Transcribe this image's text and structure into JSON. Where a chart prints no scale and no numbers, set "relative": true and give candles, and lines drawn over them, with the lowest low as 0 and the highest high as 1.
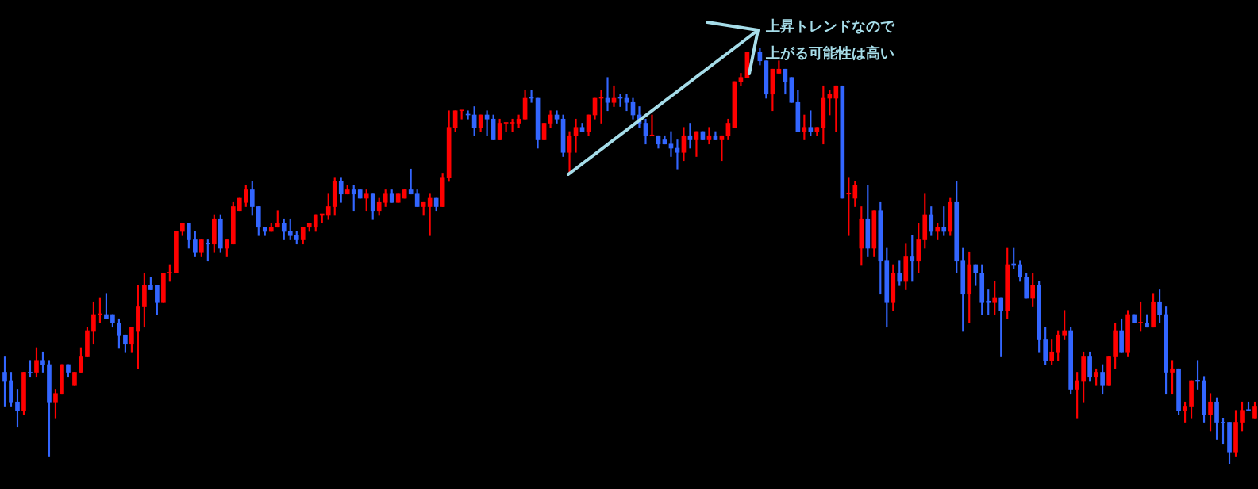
{
  "chart_data": {
    "type": "candlestick",
    "relative": true,
    "annotations": [
      "上昇トレンドなので",
      "上がる可能性は高い"
    ],
    "categories": [
      null,
      null,
      null,
      null,
      null,
      null,
      null,
      null,
      null,
      null,
      null,
      null,
      null,
      null,
      null,
      null,
      null,
      null,
      null,
      null,
      null,
      null,
      null,
      null,
      null,
      null,
      null,
      null,
      null,
      null,
      null,
      null,
      null,
      null,
      null,
      null,
      null,
      null,
      null,
      null,
      null,
      null,
      null,
      null,
      null,
      null,
      null,
      null,
      null,
      null,
      null,
      null,
      null,
      null,
      null,
      null,
      null,
      null,
      null,
      null,
      null,
      null,
      null,
      null,
      null,
      null,
      null,
      null,
      null,
      null,
      null,
      null,
      null,
      null,
      null,
      null,
      null,
      null,
      null,
      null,
      null,
      null,
      null,
      null,
      null,
      null,
      null,
      null,
      null,
      null,
      null,
      null,
      null,
      null,
      null,
      null,
      null,
      null,
      null,
      null,
      null,
      null,
      null,
      null,
      null,
      null,
      null,
      null,
      null,
      null,
      null,
      null,
      null,
      null,
      null,
      null,
      null,
      null,
      null,
      null,
      null,
      null,
      null,
      null,
      null,
      null,
      null,
      null,
      null,
      null,
      null,
      null,
      null,
      null,
      null,
      null,
      null,
      null,
      null,
      null,
      null,
      null,
      null,
      null,
      null,
      null,
      null,
      null,
      null,
      null,
      null,
      null,
      null,
      null,
      null,
      null,
      null,
      null,
      null,
      null,
      null,
      null,
      null,
      null,
      null,
      null,
      null,
      null,
      null,
      null,
      null,
      null,
      null,
      null,
      null,
      null,
      null,
      null,
      null,
      null,
      null,
      null,
      null,
      null,
      null,
      null,
      null,
      null,
      null,
      null,
      null,
      null,
      null,
      null,
      null,
      null,
      null,
      null
    ],
    "ohlc": [
      [
        0.22,
        0.26,
        0.14,
        0.2
      ],
      [
        0.2,
        0.22,
        0.14,
        0.15
      ],
      [
        0.15,
        0.18,
        0.09,
        0.13
      ],
      [
        0.13,
        0.22,
        0.12,
        0.22
      ],
      [
        0.22,
        0.25,
        0.21,
        0.22
      ],
      [
        0.22,
        0.28,
        0.21,
        0.25
      ],
      [
        0.25,
        0.27,
        0.22,
        0.24
      ],
      [
        0.24,
        0.25,
        0.02,
        0.15
      ],
      [
        0.15,
        0.18,
        0.11,
        0.17
      ],
      [
        0.17,
        0.24,
        0.17,
        0.24
      ],
      [
        0.24,
        0.24,
        0.21,
        0.22
      ],
      [
        0.19,
        0.22,
        0.19,
        0.22
      ],
      [
        0.22,
        0.28,
        0.22,
        0.26
      ],
      [
        0.26,
        0.33,
        0.26,
        0.32
      ],
      [
        0.32,
        0.39,
        0.29,
        0.36
      ],
      [
        0.36,
        0.4,
        0.34,
        0.36
      ],
      [
        0.36,
        0.41,
        0.35,
        0.35
      ],
      [
        0.36,
        0.36,
        0.33,
        0.34
      ],
      [
        0.34,
        0.35,
        0.28,
        0.31
      ],
      [
        0.31,
        0.31,
        0.27,
        0.29
      ],
      [
        0.29,
        0.33,
        0.27,
        0.33
      ],
      [
        0.32,
        0.43,
        0.23,
        0.38
      ],
      [
        0.38,
        0.46,
        0.33,
        0.43
      ],
      [
        0.43,
        0.45,
        0.42,
        0.42
      ],
      [
        0.43,
        0.43,
        0.36,
        0.39
      ],
      [
        0.39,
        0.46,
        0.39,
        0.46
      ],
      [
        0.46,
        0.48,
        0.44,
        0.46
      ],
      [
        0.46,
        0.56,
        0.46,
        0.56
      ],
      [
        0.56,
        0.58,
        0.55,
        0.58
      ],
      [
        0.58,
        0.58,
        0.52,
        0.54
      ],
      [
        0.54,
        0.56,
        0.5,
        0.51
      ],
      [
        0.51,
        0.54,
        0.5,
        0.54
      ],
      [
        0.53,
        0.54,
        0.49,
        0.53
      ],
      [
        0.53,
        0.6,
        0.51,
        0.59
      ],
      [
        0.59,
        0.6,
        0.51,
        0.52
      ],
      [
        0.52,
        0.54,
        0.5,
        0.54
      ],
      [
        0.53,
        0.63,
        0.53,
        0.62
      ],
      [
        0.61,
        0.64,
        0.61,
        0.64
      ],
      [
        0.63,
        0.67,
        0.62,
        0.66
      ],
      [
        0.66,
        0.68,
        0.6,
        0.62
      ],
      [
        0.62,
        0.62,
        0.55,
        0.57
      ],
      [
        0.57,
        0.57,
        0.55,
        0.56
      ],
      [
        0.56,
        0.58,
        0.56,
        0.57
      ],
      [
        0.57,
        0.61,
        0.57,
        0.58
      ],
      [
        0.58,
        0.59,
        0.54,
        0.56
      ],
      [
        0.56,
        0.59,
        0.54,
        0.55
      ],
      [
        0.55,
        0.56,
        0.53,
        0.54
      ],
      [
        0.54,
        0.57,
        0.53,
        0.57
      ],
      [
        0.57,
        0.58,
        0.56,
        0.58
      ],
      [
        0.57,
        0.6,
        0.56,
        0.6
      ],
      [
        0.6,
        0.6,
        0.58,
        0.6
      ],
      [
        0.6,
        0.65,
        0.59,
        0.62
      ],
      [
        0.62,
        0.69,
        0.6,
        0.68
      ],
      [
        0.68,
        0.69,
        0.63,
        0.65
      ],
      [
        0.65,
        0.67,
        0.65,
        0.66
      ],
      [
        0.66,
        0.67,
        0.61,
        0.65
      ],
      [
        0.66,
        0.66,
        0.64,
        0.64
      ],
      [
        0.64,
        0.66,
        0.61,
        0.65
      ],
      [
        0.65,
        0.65,
        0.59,
        0.61
      ],
      [
        0.61,
        0.64,
        0.6,
        0.63
      ],
      [
        0.63,
        0.66,
        0.62,
        0.65
      ],
      [
        0.65,
        0.66,
        0.63,
        0.63
      ],
      [
        0.63,
        0.65,
        0.63,
        0.65
      ],
      [
        0.64,
        0.66,
        0.64,
        0.66
      ],
      [
        0.66,
        0.71,
        0.65,
        0.65
      ],
      [
        0.65,
        0.66,
        0.62,
        0.62
      ],
      [
        0.62,
        0.63,
        0.6,
        0.63
      ],
      [
        0.62,
        0.65,
        0.55,
        0.64
      ],
      [
        0.64,
        0.64,
        0.61,
        0.62
      ],
      [
        0.62,
        0.7,
        0.62,
        0.69
      ],
      [
        0.69,
        0.85,
        0.68,
        0.81
      ],
      [
        0.81,
        0.85,
        0.8,
        0.85
      ],
      [
        0.85,
        0.85,
        0.83,
        0.85
      ],
      [
        0.84,
        0.85,
        0.83,
        0.84
      ],
      [
        0.84,
        0.86,
        0.79,
        0.81
      ],
      [
        0.81,
        0.84,
        0.8,
        0.84
      ],
      [
        0.84,
        0.85,
        0.79,
        0.83
      ],
      [
        0.83,
        0.84,
        0.78,
        0.78
      ],
      [
        0.78,
        0.83,
        0.78,
        0.82
      ],
      [
        0.82,
        0.82,
        0.8,
        0.82
      ],
      [
        0.82,
        0.83,
        0.8,
        0.82
      ],
      [
        0.82,
        0.84,
        0.81,
        0.83
      ],
      [
        0.83,
        0.9,
        0.83,
        0.88
      ],
      [
        0.88,
        0.9,
        0.87,
        0.88
      ],
      [
        0.88,
        0.88,
        0.76,
        0.78
      ],
      [
        0.78,
        0.82,
        0.78,
        0.82
      ],
      [
        0.82,
        0.85,
        0.81,
        0.84
      ],
      [
        0.84,
        0.85,
        0.82,
        0.83
      ],
      [
        0.83,
        0.84,
        0.74,
        0.75
      ],
      [
        0.75,
        0.8,
        0.7,
        0.79
      ],
      [
        0.79,
        0.83,
        0.75,
        0.81
      ],
      [
        0.81,
        0.82,
        0.8,
        0.8
      ],
      [
        0.8,
        0.84,
        0.79,
        0.84
      ],
      [
        0.84,
        0.88,
        0.83,
        0.88
      ],
      [
        0.88,
        0.9,
        0.82,
        0.88
      ],
      [
        0.88,
        0.93,
        0.85,
        0.87
      ],
      [
        0.87,
        0.91,
        0.86,
        0.88
      ],
      [
        0.88,
        0.89,
        0.86,
        0.88
      ],
      [
        0.88,
        0.89,
        0.85,
        0.87
      ],
      [
        0.87,
        0.88,
        0.83,
        0.84
      ],
      [
        0.84,
        0.86,
        0.81,
        0.82
      ],
      [
        0.82,
        0.83,
        0.77,
        0.79
      ],
      [
        0.79,
        0.84,
        0.79,
        0.79
      ],
      [
        0.79,
        0.79,
        0.76,
        0.77
      ],
      [
        0.78,
        0.79,
        0.77,
        0.77
      ],
      [
        0.77,
        0.8,
        0.74,
        0.76
      ],
      [
        0.76,
        0.78,
        0.71,
        0.75
      ],
      [
        0.75,
        0.81,
        0.73,
        0.79
      ],
      [
        0.79,
        0.82,
        0.76,
        0.78
      ],
      [
        0.78,
        0.8,
        0.74,
        0.8
      ],
      [
        0.8,
        0.8,
        0.78,
        0.78
      ],
      [
        0.78,
        0.81,
        0.77,
        0.79
      ],
      [
        0.79,
        0.8,
        0.78,
        0.78
      ],
      [
        0.78,
        0.79,
        0.73,
        0.79
      ],
      [
        0.79,
        0.83,
        0.78,
        0.82
      ],
      [
        0.81,
        0.92,
        0.81,
        0.92
      ],
      [
        0.92,
        0.94,
        0.91,
        0.93
      ],
      [
        0.93,
        0.99,
        0.93,
        0.99
      ],
      null,
      [
        0.99,
        1.0,
        0.96,
        0.97
      ],
      [
        0.97,
        0.97,
        0.88,
        0.89
      ],
      [
        0.89,
        0.95,
        0.85,
        0.95
      ],
      [
        0.94,
        0.97,
        0.94,
        0.95
      ],
      [
        0.95,
        0.95,
        0.89,
        0.92
      ],
      [
        0.93,
        0.93,
        0.87,
        0.87
      ],
      [
        0.87,
        0.9,
        0.8,
        0.8
      ],
      [
        0.8,
        0.84,
        0.78,
        0.81
      ],
      [
        0.81,
        0.85,
        0.79,
        0.8
      ],
      [
        0.8,
        0.81,
        0.79,
        0.81
      ],
      [
        0.81,
        0.91,
        0.77,
        0.88
      ],
      [
        0.88,
        0.9,
        0.84,
        0.89
      ],
      [
        0.88,
        0.91,
        0.8,
        0.91
      ],
      [
        0.91,
        0.91,
        0.64,
        0.64
      ],
      [
        0.65,
        0.69,
        0.55,
        0.65
      ],
      [
        0.64,
        0.68,
        0.62,
        0.67
      ],
      [
        0.52,
        0.62,
        0.48,
        0.59
      ],
      [
        0.59,
        0.67,
        0.5,
        0.52
      ],
      [
        0.52,
        0.61,
        0.5,
        0.61
      ],
      [
        0.61,
        0.63,
        0.41,
        0.49
      ],
      [
        0.49,
        0.52,
        0.33,
        0.39
      ],
      [
        0.39,
        0.48,
        0.37,
        0.46
      ],
      [
        0.46,
        0.49,
        0.43,
        0.44
      ],
      [
        0.44,
        0.53,
        0.42,
        0.5
      ],
      [
        0.5,
        0.55,
        0.44,
        0.49
      ],
      [
        0.49,
        0.58,
        0.46,
        0.54
      ],
      [
        0.54,
        0.65,
        0.52,
        0.6
      ],
      [
        0.6,
        0.62,
        0.55,
        0.56
      ],
      [
        0.56,
        0.58,
        0.54,
        0.57
      ],
      [
        0.57,
        0.62,
        0.55,
        0.56
      ],
      [
        0.56,
        0.64,
        0.55,
        0.63
      ],
      [
        0.63,
        0.68,
        0.46,
        0.49
      ],
      [
        0.49,
        0.52,
        0.32,
        0.41
      ],
      [
        0.41,
        0.51,
        0.34,
        0.48
      ],
      [
        0.48,
        0.48,
        0.43,
        0.46
      ],
      [
        0.46,
        0.48,
        0.36,
        0.39
      ],
      [
        0.39,
        0.42,
        0.36,
        0.39
      ],
      [
        0.39,
        0.44,
        0.36,
        0.4
      ],
      [
        0.4,
        0.4,
        0.26,
        0.37
      ],
      [
        0.37,
        0.52,
        0.35,
        0.48
      ],
      [
        0.48,
        0.52,
        0.47,
        0.48
      ],
      [
        0.48,
        0.49,
        0.44,
        0.45
      ],
      [
        0.45,
        0.46,
        0.4,
        0.4
      ],
      [
        0.4,
        0.46,
        0.38,
        0.43
      ],
      [
        0.43,
        0.44,
        0.27,
        0.3
      ],
      [
        0.3,
        0.33,
        0.24,
        0.25
      ],
      [
        0.25,
        0.3,
        0.24,
        0.27
      ],
      [
        0.27,
        0.32,
        0.25,
        0.31
      ],
      [
        0.31,
        0.37,
        0.3,
        0.32
      ],
      [
        0.32,
        0.33,
        0.17,
        0.18
      ],
      [
        0.18,
        0.22,
        0.11,
        0.2
      ],
      [
        0.2,
        0.27,
        0.15,
        0.26
      ],
      [
        0.26,
        0.27,
        0.2,
        0.21
      ],
      [
        0.21,
        0.23,
        0.19,
        0.22
      ],
      [
        0.22,
        0.24,
        0.17,
        0.19
      ],
      [
        0.19,
        0.26,
        0.19,
        0.26
      ],
      [
        0.26,
        0.34,
        0.23,
        0.32
      ],
      [
        0.32,
        0.35,
        0.27,
        0.27
      ],
      [
        0.27,
        0.37,
        0.26,
        0.36
      ],
      [
        0.36,
        0.36,
        0.34,
        0.34
      ],
      [
        0.34,
        0.39,
        0.32,
        0.34
      ],
      [
        0.34,
        0.36,
        0.33,
        0.33
      ],
      [
        0.33,
        0.41,
        0.33,
        0.39
      ],
      [
        0.39,
        0.42,
        0.34,
        0.36
      ],
      [
        0.36,
        0.38,
        0.17,
        0.22
      ],
      [
        0.22,
        0.25,
        0.17,
        0.23
      ],
      [
        0.23,
        0.23,
        0.12,
        0.13
      ],
      [
        0.13,
        0.15,
        0.1,
        0.14
      ],
      [
        0.14,
        0.2,
        0.11,
        0.2
      ],
      [
        0.2,
        0.25,
        0.18,
        0.2
      ],
      [
        0.2,
        0.21,
        0.1,
        0.12
      ],
      [
        0.12,
        0.17,
        0.08,
        0.15
      ],
      [
        0.15,
        0.16,
        0.06,
        0.1
      ],
      [
        0.1,
        0.11,
        0.05,
        0.1
      ],
      [
        0.1,
        0.1,
        0.0,
        0.03
      ],
      [
        0.03,
        0.13,
        0.02,
        0.1
      ],
      [
        0.1,
        0.15,
        0.08,
        0.13
      ],
      [
        0.13,
        0.15,
        0.13,
        0.13
      ],
      [
        0.11,
        0.15,
        0.11,
        0.14
      ]
    ],
    "colors": [
      "#3366ff",
      "#3366ff",
      "#3366ff",
      "#ff0000",
      "#3366ff",
      "#ff0000",
      "#3366ff",
      "#3366ff",
      "#ff0000",
      "#ff0000",
      "#3366ff",
      "#ff0000",
      "#ff0000",
      "#ff0000",
      "#ff0000",
      "#ff0000",
      "#3366ff",
      "#3366ff",
      "#3366ff",
      "#3366ff",
      "#ff0000",
      "#ff0000",
      "#ff0000",
      "#3366ff",
      "#3366ff",
      "#ff0000",
      "#ff0000",
      "#ff0000",
      "#ff0000",
      "#3366ff",
      "#3366ff",
      "#ff0000",
      "#3366ff",
      "#ff0000",
      "#3366ff",
      "#ff0000",
      "#ff0000",
      "#ff0000",
      "#ff0000",
      "#3366ff",
      "#3366ff",
      "#3366ff",
      "#ff0000",
      "#ff0000",
      "#3366ff",
      "#3366ff",
      "#3366ff",
      "#ff0000",
      "#ff0000",
      "#ff0000",
      "#ff0000",
      "#ff0000",
      "#ff0000",
      "#3366ff",
      "#ff0000",
      "#3366ff",
      "#3366ff",
      "#ff0000",
      "#3366ff",
      "#ff0000",
      "#ff0000",
      "#3366ff",
      "#ff0000",
      "#ff0000",
      "#3366ff",
      "#3366ff",
      "#ff0000",
      "#ff0000",
      "#3366ff",
      "#ff0000",
      "#ff0000",
      "#ff0000",
      "#ff0000",
      "#3366ff",
      "#3366ff",
      "#ff0000",
      "#3366ff",
      "#3366ff",
      "#ff0000",
      "#ff0000",
      "#ff0000",
      "#ff0000",
      "#ff0000",
      "#3366ff",
      "#3366ff",
      "#ff0000",
      "#ff0000",
      "#3366ff",
      "#3366ff",
      "#ff0000",
      "#ff0000",
      "#3366ff",
      "#ff0000",
      "#ff0000",
      "#ff0000",
      "#3366ff",
      "#ff0000",
      "#3366ff",
      "#3366ff",
      "#3366ff",
      "#3366ff",
      "#3366ff",
      "#ff0000",
      "#3366ff",
      "#3366ff",
      "#3366ff",
      "#3366ff",
      "#ff0000",
      "#3366ff",
      "#ff0000",
      "#3366ff",
      "#ff0000",
      "#3366ff",
      "#ff0000",
      "#ff0000",
      "#ff0000",
      "#ff0000",
      "#ff0000",
      null,
      "#3366ff",
      "#3366ff",
      "#ff0000",
      "#ff0000",
      "#3366ff",
      "#3366ff",
      "#3366ff",
      "#ff0000",
      "#3366ff",
      "#ff0000",
      "#ff0000",
      "#ff0000",
      "#ff0000",
      "#3366ff",
      "#ff0000",
      "#ff0000",
      "#ff0000",
      "#3366ff",
      "#ff0000",
      "#3366ff",
      "#3366ff",
      "#ff0000",
      "#3366ff",
      "#ff0000",
      "#3366ff",
      "#ff0000",
      "#ff0000",
      "#3366ff",
      "#ff0000",
      "#3366ff",
      "#ff0000",
      "#3366ff",
      "#3366ff",
      "#ff0000",
      "#3366ff",
      "#3366ff",
      "#3366ff",
      "#ff0000",
      "#3366ff",
      "#ff0000",
      "#3366ff",
      "#3366ff",
      "#3366ff",
      "#ff0000",
      "#3366ff",
      "#3366ff",
      "#ff0000",
      "#ff0000",
      "#ff0000",
      "#3366ff",
      "#ff0000",
      "#ff0000",
      "#3366ff",
      "#ff0000",
      "#3366ff",
      "#ff0000",
      "#ff0000",
      "#3366ff",
      "#ff0000",
      "#3366ff",
      "#ff0000",
      "#3366ff",
      "#ff0000",
      "#3366ff",
      "#3366ff",
      "#ff0000",
      "#3366ff",
      "#ff0000",
      "#ff0000",
      "#3366ff",
      "#3366ff",
      "#ff0000",
      "#3366ff",
      "#3366ff",
      "#3366ff",
      "#ff0000",
      "#ff0000",
      "#3366ff",
      "#ff0000"
    ]
  }
}
